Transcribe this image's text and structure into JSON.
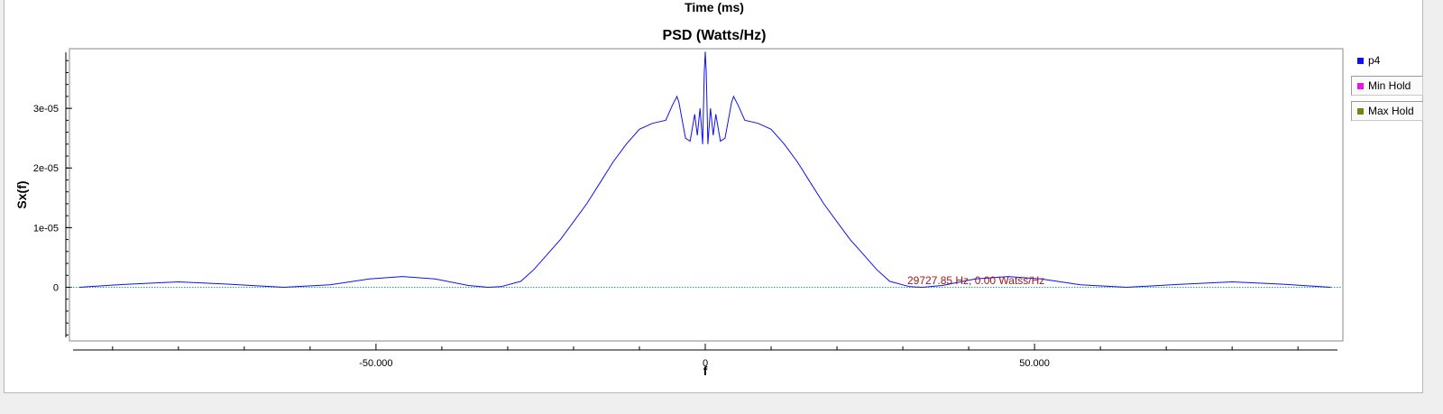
{
  "header": {
    "top_title": "Time (ms)"
  },
  "chart_data": {
    "type": "line",
    "title": "PSD (Watts/Hz)",
    "xlabel": "f",
    "ylabel": "Sx(f)",
    "xlim": [
      -96,
      96
    ],
    "ylim": [
      -9e-06,
      4e-05
    ],
    "x_ticks": [
      {
        "value": -50,
        "label": "-50.000"
      },
      {
        "value": 0,
        "label": "0"
      },
      {
        "value": 50,
        "label": "50.000"
      }
    ],
    "y_ticks": [
      {
        "value": 0,
        "label": "0"
      },
      {
        "value": 1e-05,
        "label": "1e-05"
      },
      {
        "value": 2e-05,
        "label": "2e-05"
      },
      {
        "value": 3e-05,
        "label": "3e-05"
      }
    ],
    "grid": false,
    "legend_position": "right",
    "series": [
      {
        "name": "p4",
        "color": "#1010ee",
        "x": [
          -95,
          -88,
          -80,
          -72,
          -64,
          -57,
          -51,
          -46,
          -41,
          -36,
          -33,
          -31,
          -28,
          -26,
          -24,
          -22,
          -20,
          -18,
          -16,
          -14,
          -12,
          -10,
          -8,
          -6,
          -5,
          -4.3,
          -4,
          -3,
          -2.3,
          -1.6,
          -1.2,
          -0.8,
          -0.4,
          -0.15,
          0,
          0.15,
          0.4,
          0.8,
          1.2,
          1.6,
          2.3,
          3,
          4,
          4.3,
          5,
          6,
          8,
          10,
          12,
          14,
          16,
          18,
          20,
          22,
          24,
          26,
          28,
          31,
          33,
          36,
          41,
          46,
          51,
          57,
          64,
          72,
          80,
          88,
          95
        ],
        "y": [
          0,
          5e-07,
          9e-07,
          5e-07,
          0,
          4e-07,
          1.4e-06,
          1.8e-06,
          1.4e-06,
          3e-07,
          0,
          1e-07,
          1e-06,
          3e-06,
          5.5e-06,
          8e-06,
          1.1e-05,
          1.4e-05,
          1.75e-05,
          2.1e-05,
          2.4e-05,
          2.65e-05,
          2.75e-05,
          2.8e-05,
          3.05e-05,
          3.2e-05,
          3.1e-05,
          2.5e-05,
          2.45e-05,
          2.9e-05,
          2.55e-05,
          3e-05,
          2.4e-05,
          3.6e-05,
          3.95e-05,
          3.6e-05,
          2.4e-05,
          3e-05,
          2.55e-05,
          2.9e-05,
          2.45e-05,
          2.5e-05,
          3.1e-05,
          3.2e-05,
          3.05e-05,
          2.8e-05,
          2.75e-05,
          2.65e-05,
          2.4e-05,
          2.1e-05,
          1.75e-05,
          1.4e-05,
          1.1e-05,
          8e-06,
          5.5e-06,
          3e-06,
          1e-06,
          1e-07,
          0,
          3e-07,
          1.4e-06,
          1.8e-06,
          1.4e-06,
          4e-07,
          0,
          5e-07,
          9e-07,
          5e-07,
          0
        ]
      },
      {
        "name": "Min Hold",
        "color": "#ee10ee",
        "x": [],
        "y": []
      },
      {
        "name": "Max Hold",
        "color": "#808010",
        "x": [],
        "y": []
      }
    ],
    "baseline_color": "#1aa7a7",
    "annotation": {
      "text": "29727.85 Hz, 0.00 Watss/Hz",
      "color": "#a01818"
    }
  }
}
